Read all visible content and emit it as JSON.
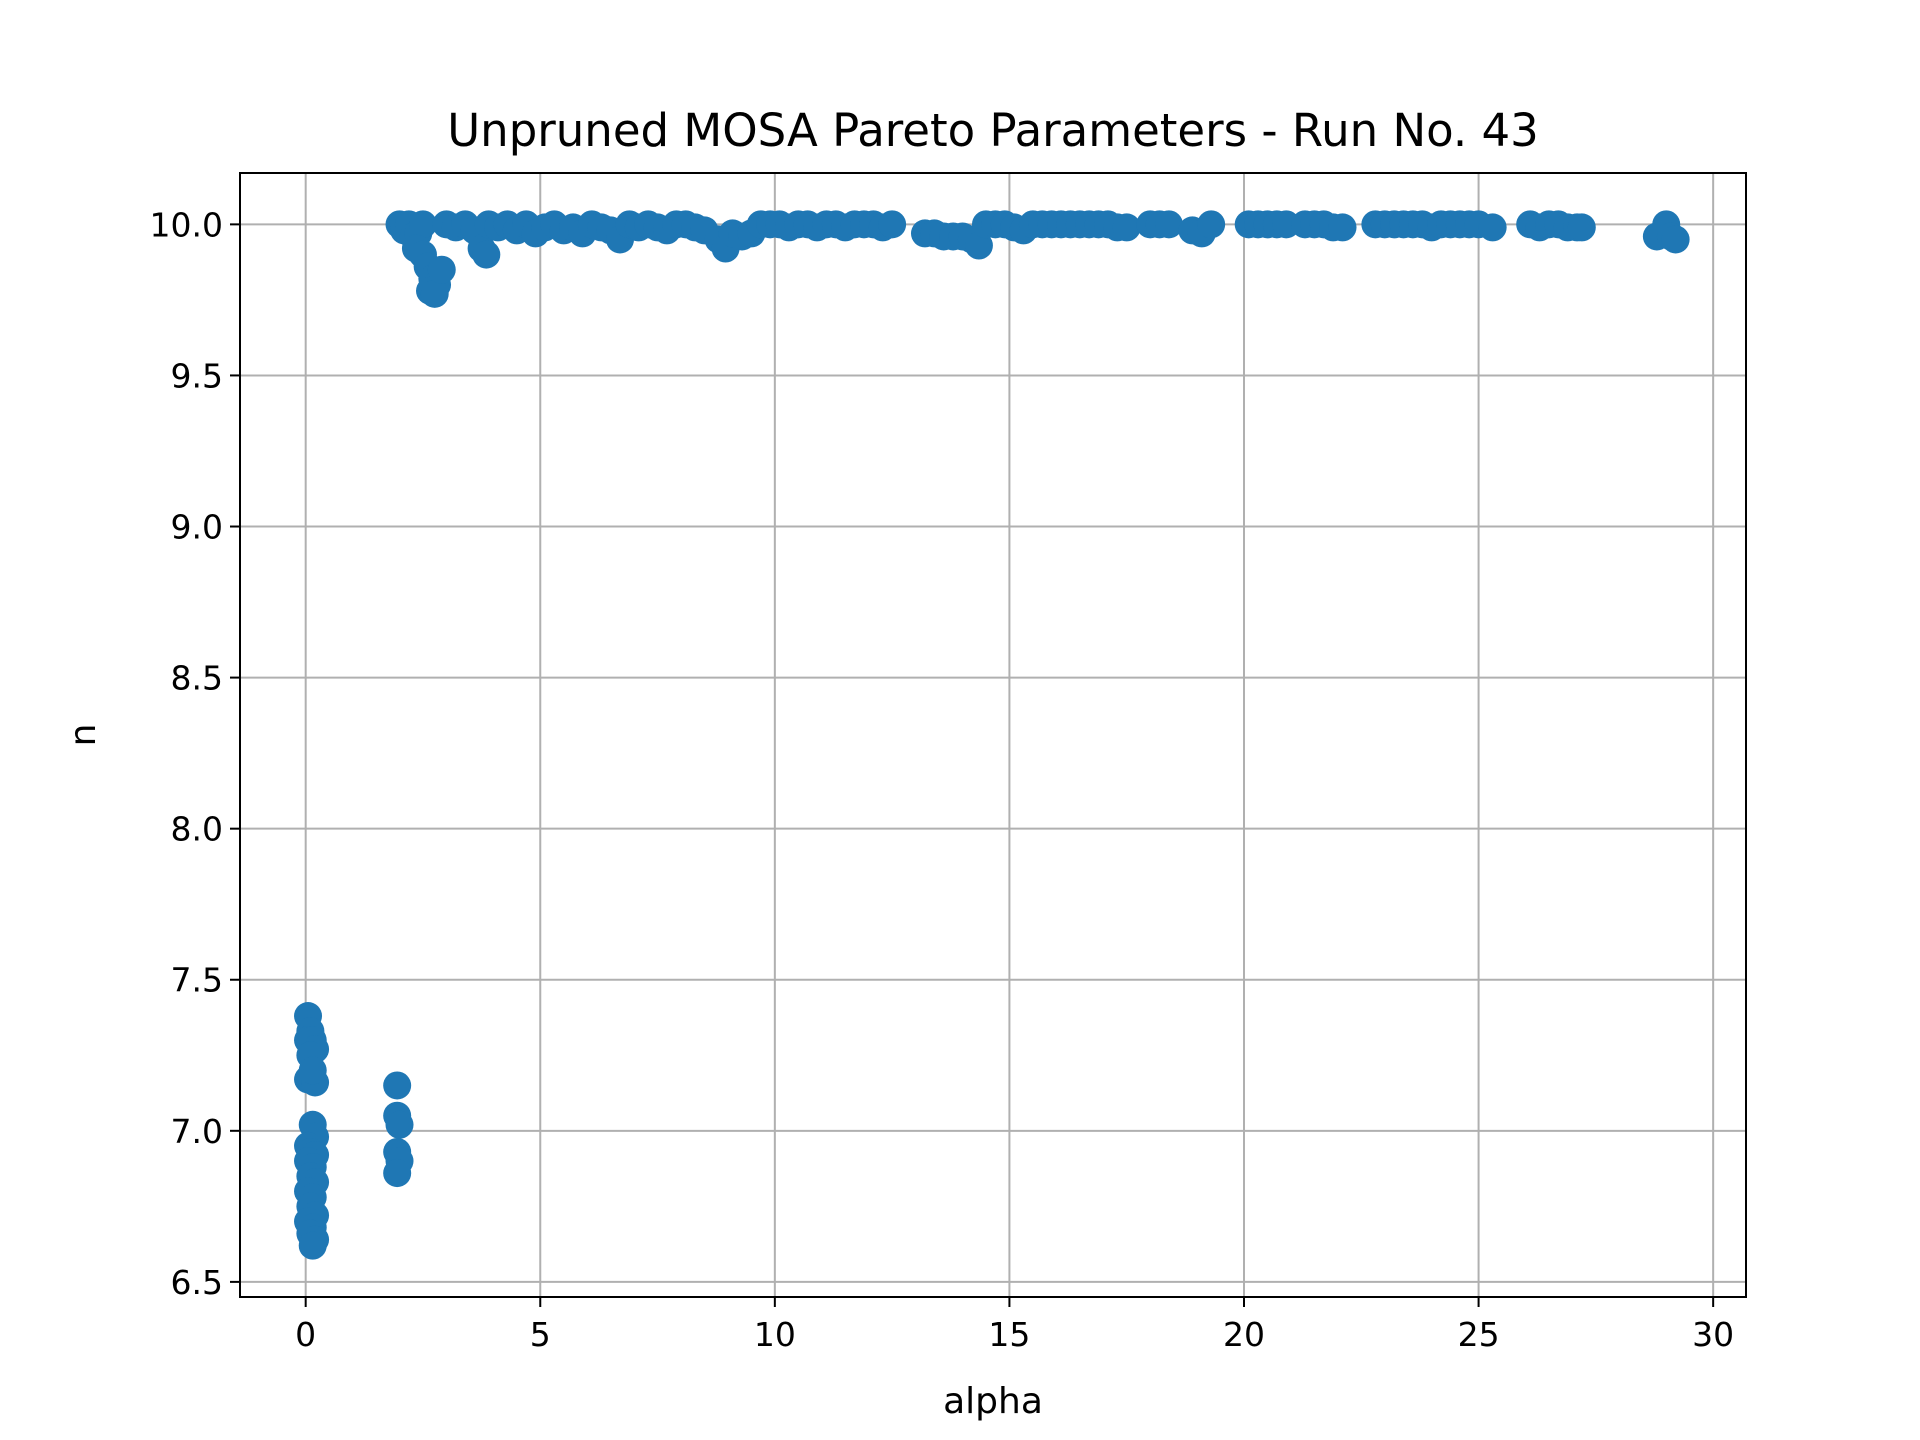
{
  "chart_data": {
    "type": "scatter",
    "title": "Unpruned MOSA Pareto Parameters - Run No. 43",
    "xlabel": "alpha",
    "ylabel": "n",
    "xlim": [
      -1.4,
      30.7
    ],
    "ylim": [
      6.45,
      10.17
    ],
    "xticks": [
      0,
      5,
      10,
      15,
      20,
      25,
      30
    ],
    "yticks": [
      6.5,
      7.0,
      7.5,
      8.0,
      8.5,
      9.0,
      9.5,
      10.0
    ],
    "ytick_labels": [
      "6.5",
      "7.0",
      "7.5",
      "8.0",
      "8.5",
      "9.0",
      "9.5",
      "10.0"
    ],
    "grid": true,
    "marker_color": "#1f77b4",
    "series": [
      {
        "points": [
          [
            0.05,
            7.38
          ],
          [
            0.1,
            7.33
          ],
          [
            0.05,
            7.3
          ],
          [
            0.15,
            7.3
          ],
          [
            0.2,
            7.27
          ],
          [
            0.1,
            7.25
          ],
          [
            0.05,
            7.17
          ],
          [
            0.2,
            7.16
          ],
          [
            0.15,
            7.2
          ],
          [
            0.15,
            7.02
          ],
          [
            0.2,
            6.98
          ],
          [
            0.05,
            6.95
          ],
          [
            0.1,
            6.93
          ],
          [
            0.2,
            6.92
          ],
          [
            0.05,
            6.9
          ],
          [
            0.15,
            6.88
          ],
          [
            0.1,
            6.85
          ],
          [
            0.2,
            6.83
          ],
          [
            0.05,
            6.8
          ],
          [
            0.15,
            6.78
          ],
          [
            0.1,
            6.75
          ],
          [
            0.2,
            6.72
          ],
          [
            0.05,
            6.7
          ],
          [
            0.15,
            6.68
          ],
          [
            0.1,
            6.66
          ],
          [
            0.2,
            6.64
          ],
          [
            0.15,
            6.62
          ],
          [
            1.95,
            7.15
          ],
          [
            1.95,
            7.05
          ],
          [
            2.0,
            7.02
          ],
          [
            1.95,
            6.93
          ],
          [
            2.0,
            6.9
          ],
          [
            1.95,
            6.86
          ],
          [
            2.0,
            10.0
          ],
          [
            2.1,
            9.98
          ],
          [
            2.2,
            10.0
          ],
          [
            2.3,
            9.96
          ],
          [
            2.4,
            9.97
          ],
          [
            2.5,
            10.0
          ],
          [
            2.35,
            9.92
          ],
          [
            2.5,
            9.9
          ],
          [
            2.6,
            9.86
          ],
          [
            2.7,
            9.82
          ],
          [
            2.8,
            9.8
          ],
          [
            2.65,
            9.78
          ],
          [
            2.75,
            9.77
          ],
          [
            2.9,
            9.85
          ],
          [
            3.0,
            10.0
          ],
          [
            3.2,
            9.99
          ],
          [
            3.4,
            10.0
          ],
          [
            3.6,
            9.98
          ],
          [
            3.75,
            9.92
          ],
          [
            3.85,
            9.9
          ],
          [
            3.9,
            10.0
          ],
          [
            4.1,
            9.99
          ],
          [
            4.3,
            10.0
          ],
          [
            4.5,
            9.98
          ],
          [
            4.7,
            10.0
          ],
          [
            4.9,
            9.97
          ],
          [
            5.1,
            9.99
          ],
          [
            5.3,
            10.0
          ],
          [
            5.5,
            9.98
          ],
          [
            5.7,
            9.99
          ],
          [
            5.9,
            9.97
          ],
          [
            6.1,
            10.0
          ],
          [
            6.3,
            9.99
          ],
          [
            6.5,
            9.98
          ],
          [
            6.7,
            9.95
          ],
          [
            6.9,
            10.0
          ],
          [
            7.1,
            9.99
          ],
          [
            7.3,
            10.0
          ],
          [
            7.5,
            9.99
          ],
          [
            7.7,
            9.98
          ],
          [
            7.9,
            10.0
          ],
          [
            8.1,
            10.0
          ],
          [
            8.3,
            9.99
          ],
          [
            8.5,
            9.98
          ],
          [
            8.8,
            9.95
          ],
          [
            8.95,
            9.92
          ],
          [
            9.1,
            9.97
          ],
          [
            9.3,
            9.96
          ],
          [
            9.5,
            9.97
          ],
          [
            9.7,
            10.0
          ],
          [
            9.9,
            10.0
          ],
          [
            10.1,
            10.0
          ],
          [
            10.3,
            9.99
          ],
          [
            10.5,
            10.0
          ],
          [
            10.7,
            10.0
          ],
          [
            10.9,
            9.99
          ],
          [
            11.1,
            10.0
          ],
          [
            11.3,
            10.0
          ],
          [
            11.5,
            9.99
          ],
          [
            11.7,
            10.0
          ],
          [
            11.9,
            10.0
          ],
          [
            12.1,
            10.0
          ],
          [
            12.3,
            9.99
          ],
          [
            12.5,
            10.0
          ],
          [
            13.2,
            9.97
          ],
          [
            13.4,
            9.97
          ],
          [
            13.6,
            9.96
          ],
          [
            13.8,
            9.96
          ],
          [
            14.0,
            9.96
          ],
          [
            14.2,
            9.95
          ],
          [
            14.35,
            9.93
          ],
          [
            14.5,
            10.0
          ],
          [
            14.7,
            10.0
          ],
          [
            14.9,
            10.0
          ],
          [
            15.1,
            9.99
          ],
          [
            15.3,
            9.98
          ],
          [
            15.5,
            10.0
          ],
          [
            15.7,
            10.0
          ],
          [
            15.9,
            10.0
          ],
          [
            16.1,
            10.0
          ],
          [
            16.3,
            10.0
          ],
          [
            16.5,
            10.0
          ],
          [
            16.7,
            10.0
          ],
          [
            16.9,
            10.0
          ],
          [
            17.1,
            10.0
          ],
          [
            17.3,
            9.99
          ],
          [
            17.5,
            9.99
          ],
          [
            18.0,
            10.0
          ],
          [
            18.2,
            10.0
          ],
          [
            18.4,
            10.0
          ],
          [
            18.9,
            9.98
          ],
          [
            19.1,
            9.97
          ],
          [
            19.3,
            10.0
          ],
          [
            20.1,
            10.0
          ],
          [
            20.3,
            10.0
          ],
          [
            20.5,
            10.0
          ],
          [
            20.7,
            10.0
          ],
          [
            20.9,
            10.0
          ],
          [
            21.3,
            10.0
          ],
          [
            21.5,
            10.0
          ],
          [
            21.7,
            10.0
          ],
          [
            21.9,
            9.99
          ],
          [
            22.1,
            9.99
          ],
          [
            22.8,
            10.0
          ],
          [
            23.0,
            10.0
          ],
          [
            23.2,
            10.0
          ],
          [
            23.4,
            10.0
          ],
          [
            23.6,
            10.0
          ],
          [
            23.8,
            10.0
          ],
          [
            24.0,
            9.99
          ],
          [
            24.2,
            10.0
          ],
          [
            24.4,
            10.0
          ],
          [
            24.6,
            10.0
          ],
          [
            24.8,
            10.0
          ],
          [
            25.0,
            10.0
          ],
          [
            25.3,
            9.99
          ],
          [
            26.1,
            10.0
          ],
          [
            26.3,
            9.99
          ],
          [
            26.5,
            10.0
          ],
          [
            26.7,
            10.0
          ],
          [
            26.9,
            9.99
          ],
          [
            27.1,
            9.99
          ],
          [
            27.2,
            9.99
          ],
          [
            28.8,
            9.96
          ],
          [
            29.0,
            10.0
          ],
          [
            29.1,
            9.96
          ],
          [
            29.2,
            9.95
          ]
        ]
      }
    ]
  }
}
